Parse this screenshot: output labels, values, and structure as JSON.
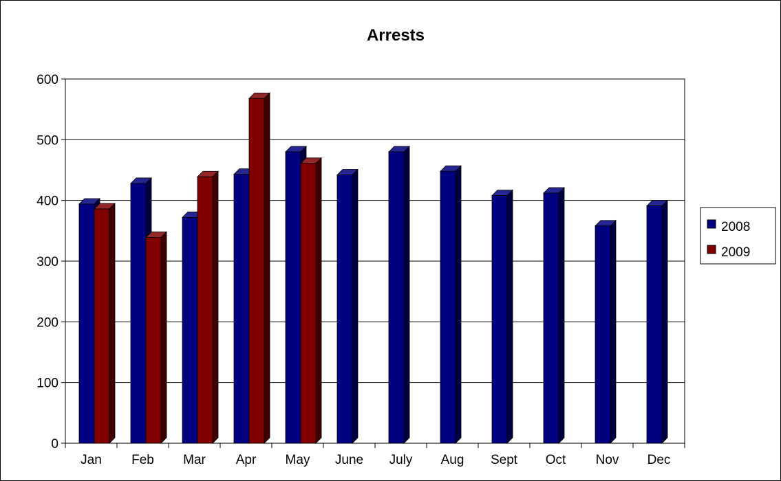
{
  "chart_data": {
    "type": "bar",
    "title": "Arrests",
    "xlabel": "",
    "ylabel": "",
    "categories": [
      "Jan",
      "Feb",
      "Mar",
      "Apr",
      "May",
      "June",
      "July",
      "Aug",
      "Sept",
      "Oct",
      "Nov",
      "Dec"
    ],
    "series": [
      {
        "name": "2008",
        "color": "#000080",
        "values": [
          394,
          428,
          372,
          443,
          480,
          442,
          480,
          448,
          408,
          412,
          358,
          391
        ]
      },
      {
        "name": "2009",
        "color": "#800000",
        "values": [
          386,
          339,
          439,
          568,
          461,
          null,
          null,
          null,
          null,
          null,
          null,
          null
        ]
      }
    ],
    "ylim": [
      0,
      600
    ],
    "yticks": [
      "0",
      "100",
      "200",
      "300",
      "400",
      "500",
      "600"
    ],
    "grid": true,
    "legend_position": "right",
    "three_d_effect": true
  }
}
